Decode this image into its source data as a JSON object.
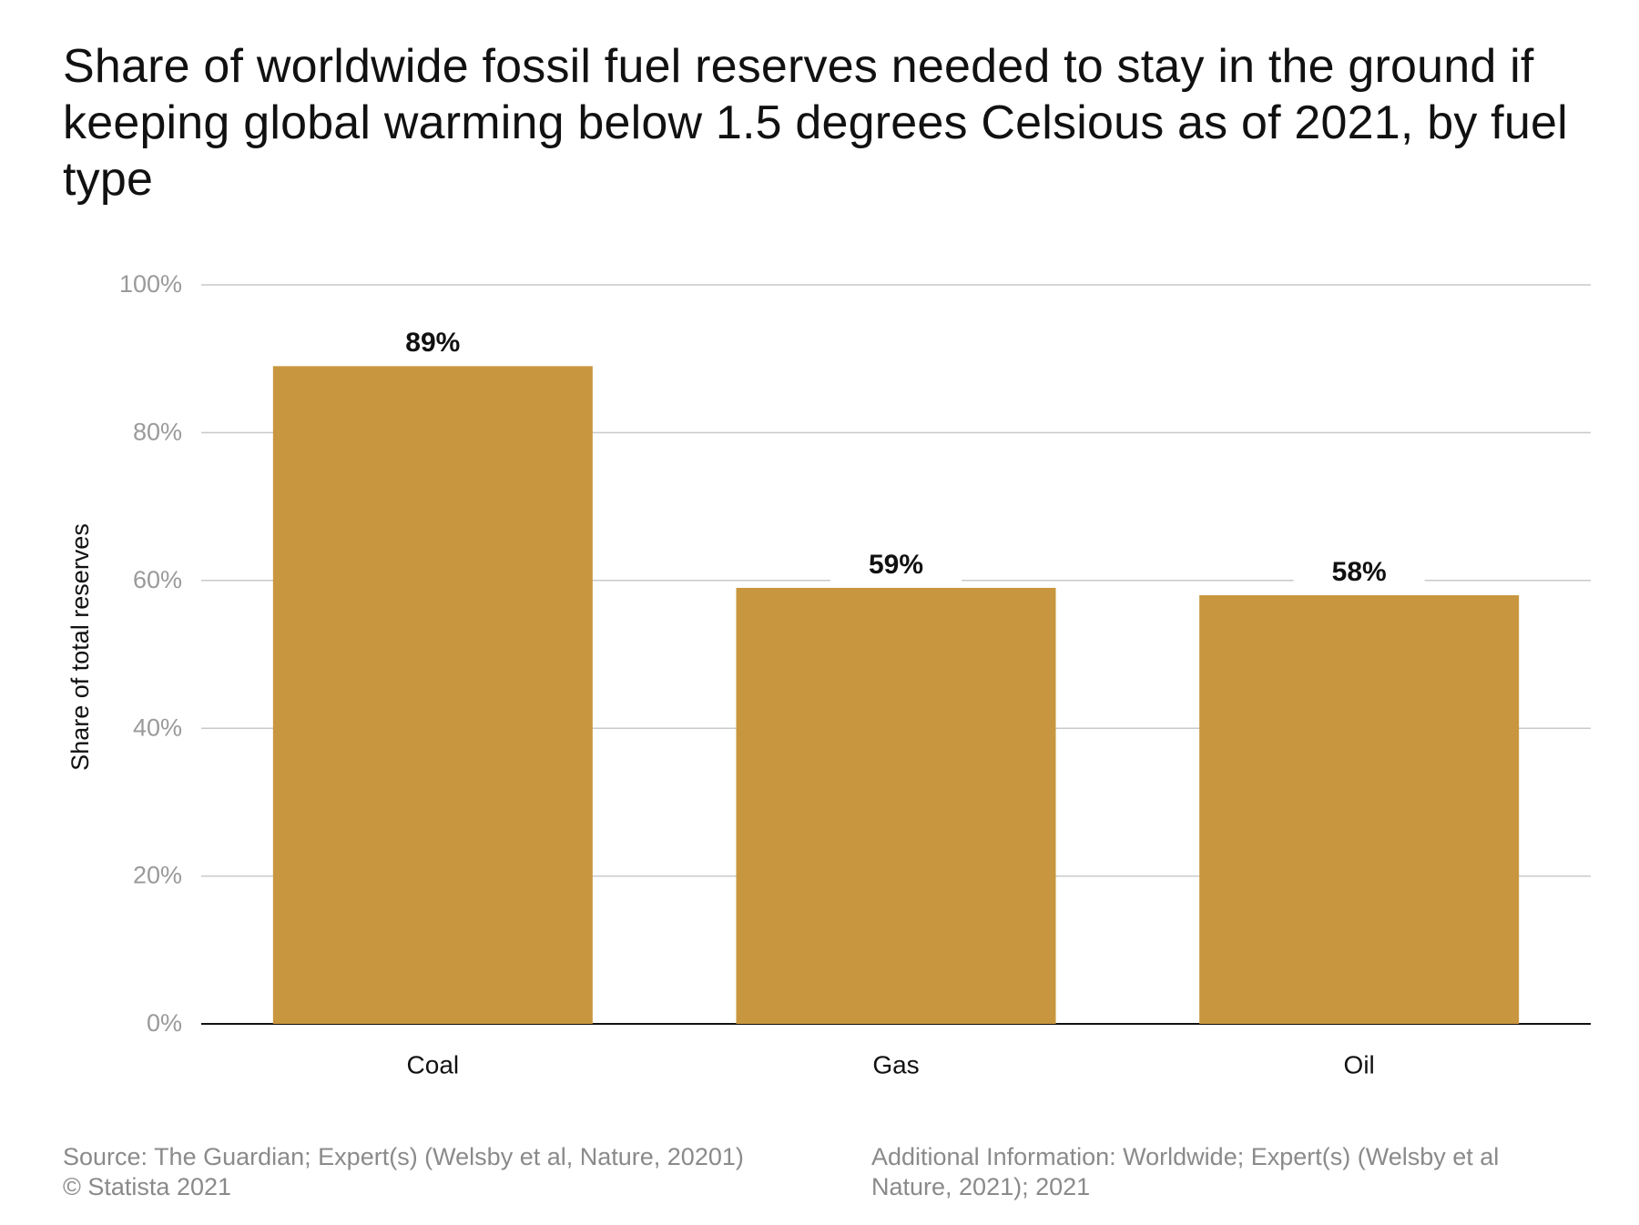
{
  "chart_data": {
    "type": "bar",
    "title": "Share of worldwide fossil fuel reserves needed to stay in the ground if keeping global warming below 1.5 degrees Celsious as of 2021, by fuel type",
    "categories": [
      "Coal",
      "Gas",
      "Oil"
    ],
    "values": [
      89,
      59,
      58
    ],
    "value_labels": [
      "89%",
      "59%",
      "58%"
    ],
    "xlabel": "",
    "ylabel": "Share of total reserves",
    "ylim": [
      0,
      100
    ],
    "y_ticks": [
      0,
      20,
      40,
      60,
      80,
      100
    ],
    "y_tick_labels": [
      "0%",
      "20%",
      "40%",
      "60%",
      "80%",
      "100%"
    ],
    "grid": true,
    "bar_color": "#c8963e",
    "grid_color": "#c9c9c9",
    "axis_color": "#111111",
    "tick_label_color": "#9a9a9a"
  },
  "footer": {
    "source": "Source: The Guardian; Expert(s) (Welsby et al, Nature, 20201)",
    "copyright": "© Statista 2021",
    "additional_line1": "Additional Information: Worldwide; Expert(s) (Welsby et al",
    "additional_line2": "Nature, 2021); 2021"
  }
}
